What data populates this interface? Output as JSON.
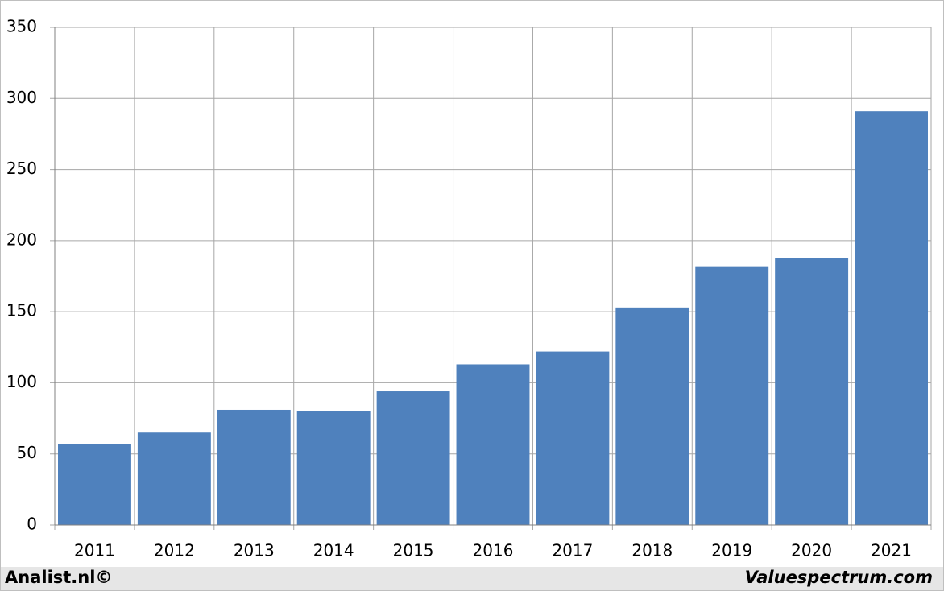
{
  "chart_data": {
    "type": "bar",
    "categories": [
      "2011",
      "2012",
      "2013",
      "2014",
      "2015",
      "2016",
      "2017",
      "2018",
      "2019",
      "2020",
      "2021"
    ],
    "values": [
      57,
      65,
      81,
      80,
      94,
      113,
      122,
      153,
      182,
      188,
      291
    ],
    "color": "#4f81bd",
    "ylim": [
      0,
      350
    ],
    "yticks": [
      0,
      50,
      100,
      150,
      200,
      250,
      300,
      350
    ],
    "grid": true
  },
  "footer": {
    "left": "Analist.nl©",
    "right": "Valuespectrum.com"
  }
}
